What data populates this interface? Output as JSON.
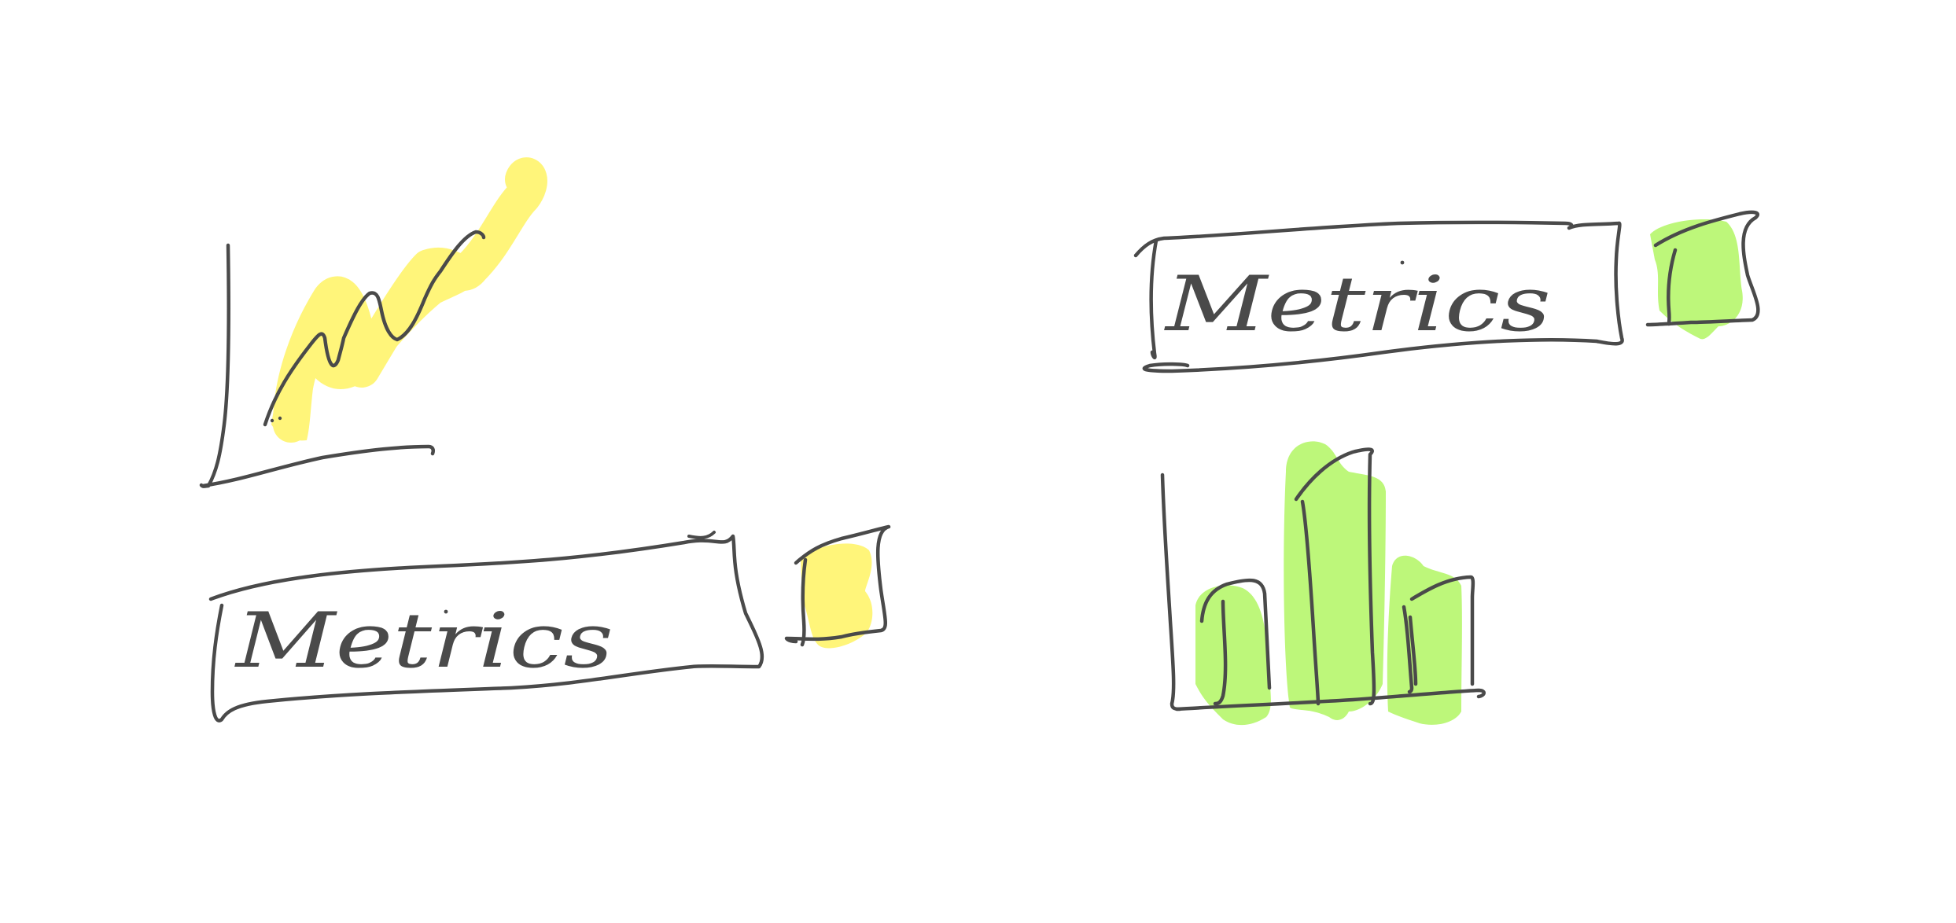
{
  "colors": {
    "background": "#ffffff",
    "ink": "#4a4a4a",
    "yellow_highlight": "#fff57a",
    "green_highlight": "#bdf77a"
  },
  "sketches": {
    "line_chart": {
      "icon": "hand-drawn-line-chart-icon"
    },
    "bar_chart": {
      "icon": "hand-drawn-bar-chart-icon"
    },
    "label_left": {
      "text": "Metrics",
      "swatch_color": "#fff57a"
    },
    "label_right": {
      "text": "Metrics",
      "swatch_color": "#bdf77a"
    }
  }
}
